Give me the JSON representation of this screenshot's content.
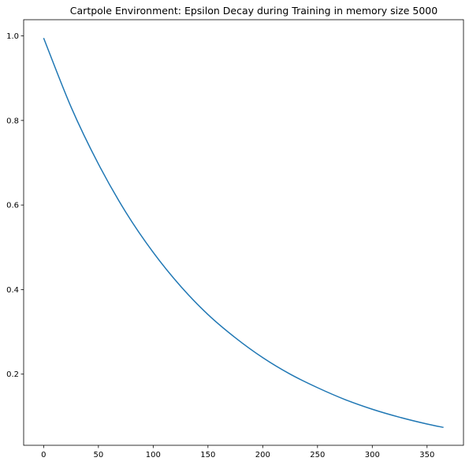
{
  "chart_data": {
    "type": "line",
    "title": "Cartpole Environment: Epsilon Decay during Training in memory size 5000",
    "xlabel": "",
    "ylabel": "",
    "xlim": [
      -18.25,
      383.25
    ],
    "ylim": [
      0.0317,
      1.0383
    ],
    "xticks": [
      0,
      50,
      100,
      150,
      200,
      250,
      300,
      350
    ],
    "yticks": [
      0.2,
      0.4,
      0.6,
      0.8,
      1.0
    ],
    "x_tick_labels": [
      "0",
      "50",
      "100",
      "150",
      "200",
      "250",
      "300",
      "350"
    ],
    "y_tick_labels": [
      "0.2",
      "0.4",
      "0.6",
      "0.8",
      "1.0"
    ],
    "grid": false,
    "series": [
      {
        "color": "#1f77b4",
        "x": [
          0,
          25,
          50,
          75,
          100,
          125,
          150,
          175,
          200,
          225,
          250,
          275,
          300,
          325,
          350,
          365
        ],
        "y": [
          0.995,
          0.832,
          0.697,
          0.583,
          0.488,
          0.408,
          0.341,
          0.286,
          0.239,
          0.2,
          0.168,
          0.14,
          0.117,
          0.098,
          0.082,
          0.074
        ]
      }
    ]
  }
}
